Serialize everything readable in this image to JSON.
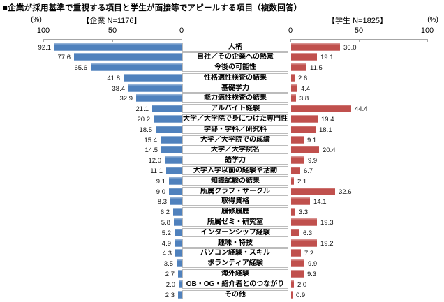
{
  "title": "■企業が採用基準で重視する項目と学生が面接等でアピールする項目（複数回答）",
  "chart_data": {
    "type": "bar",
    "layout": "bidirectional-horizontal",
    "grid": false,
    "left_axis": {
      "header": "【企業 N=1176】",
      "unit": "(%)",
      "ticks": [
        "100",
        "50",
        "0"
      ],
      "range": [
        0,
        100
      ]
    },
    "right_axis": {
      "header": "【学生 N=1825】",
      "unit": "(%)",
      "ticks": [
        "0",
        "50",
        "100"
      ],
      "range": [
        0,
        100
      ]
    },
    "categories": [
      "人柄",
      "自社／その企業への熱意",
      "今後の可能性",
      "性格適性検査の結果",
      "基礎学力",
      "能力適性検査の結果",
      "アルバイト経験",
      "大学／大学院で身につけた専門性",
      "学部・学科／研究科",
      "大学／大学院での成績",
      "大学／大学院名",
      "語学力",
      "大学入学以前の経験や活動",
      "知識試験の結果",
      "所属クラブ・サークル",
      "取得資格",
      "履修履歴",
      "所属ゼミ・研究室",
      "インターンシップ経験",
      "趣味・特技",
      "パソコン経験・スキル",
      "ボランティア経験",
      "海外経験",
      "OB・OG・紹介者とのつながり",
      "その他"
    ],
    "series": [
      {
        "name": "企業",
        "n": 1176,
        "side": "left",
        "color": "#4F81BD",
        "values": [
          92.1,
          77.6,
          65.6,
          41.8,
          38.4,
          32.9,
          21.1,
          20.2,
          18.5,
          15.4,
          14.5,
          12.0,
          11.1,
          9.1,
          9.0,
          8.3,
          6.2,
          5.8,
          5.2,
          4.9,
          4.3,
          3.5,
          2.7,
          2.0,
          2.3
        ]
      },
      {
        "name": "学生",
        "n": 1825,
        "side": "right",
        "color": "#C0504D",
        "values": [
          36.0,
          19.1,
          11.5,
          2.6,
          4.4,
          3.8,
          44.4,
          19.4,
          18.1,
          9.1,
          20.4,
          9.9,
          6.7,
          2.1,
          32.6,
          14.1,
          3.3,
          19.3,
          6.3,
          19.2,
          7.2,
          9.9,
          9.3,
          2.0,
          0.9
        ]
      }
    ]
  }
}
